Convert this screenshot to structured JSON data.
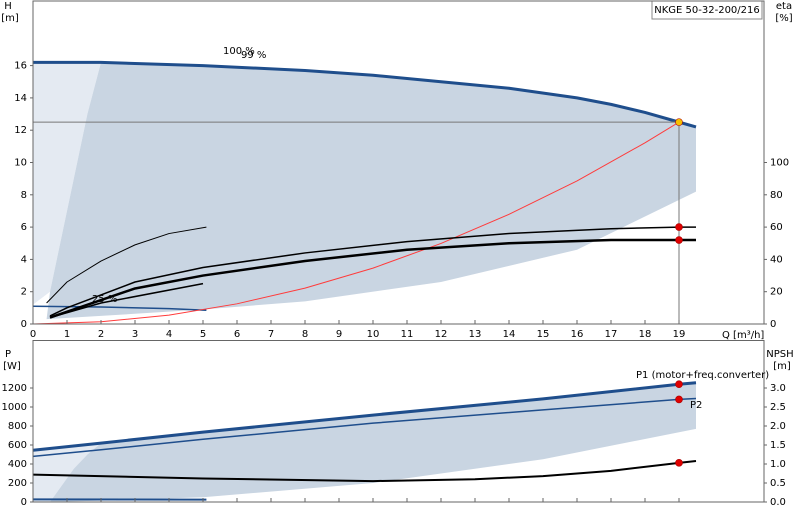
{
  "chart_data": [
    {
      "type": "line",
      "title": "NKGE 50-32-200/216",
      "y_label": "H",
      "y_unit": "[m]",
      "y2_label": "eta",
      "y2_unit": "[%]",
      "x_label": "Q [m³/h]",
      "xlim": [
        0,
        21.5
      ],
      "xticks": [
        0,
        1,
        2,
        3,
        4,
        5,
        6,
        7,
        8,
        9,
        10,
        11,
        12,
        13,
        14,
        15,
        16,
        17,
        18,
        19
      ],
      "ylim": [
        0,
        20
      ],
      "yticks": [
        0,
        2,
        4,
        6,
        8,
        10,
        12,
        14,
        16
      ],
      "y2lim": [
        0,
        200
      ],
      "y2ticks": [
        0,
        20,
        40,
        60,
        80,
        100
      ],
      "areas": [
        {
          "color": "#e4eaf2",
          "x": [
            0,
            2,
            1.6,
            1.2,
            0.8,
            0.5,
            0
          ],
          "values": [
            16.2,
            16.2,
            13,
            9,
            5,
            2,
            1.2
          ]
        },
        {
          "color": "#c9d5e2",
          "x": [
            2,
            5,
            10,
            14,
            17,
            19,
            19.5,
            19.5,
            16,
            12,
            8,
            5,
            2,
            0.4,
            0.5,
            0.8,
            1.2,
            1.6
          ],
          "values": [
            16.2,
            16.0,
            15.4,
            14.6,
            13.6,
            12.5,
            12.2,
            8.2,
            4.6,
            2.6,
            1.4,
            0.9,
            0.5,
            0.3,
            2,
            5,
            9,
            13
          ]
        }
      ],
      "series": [
        {
          "color": "#1f4e8c",
          "width": 3,
          "x": [
            0,
            2,
            5,
            8,
            10,
            12,
            14,
            16,
            17,
            18,
            19,
            19.5
          ],
          "values": [
            16.2,
            16.2,
            16.0,
            15.7,
            15.4,
            15.0,
            14.6,
            14.0,
            13.6,
            13.1,
            12.5,
            12.2
          ]
        },
        {
          "color": "#1f4e8c",
          "width": 1.5,
          "x": [
            0,
            2,
            4,
            5.1
          ],
          "values": [
            1.1,
            1.05,
            0.95,
            0.85
          ]
        },
        {
          "color": "#ff3b3b",
          "width": 1,
          "x": [
            0,
            2,
            4,
            6,
            8,
            10,
            12,
            14,
            16,
            18,
            19
          ],
          "values": [
            0,
            0.14,
            0.55,
            1.25,
            2.22,
            3.46,
            4.99,
            6.79,
            8.86,
            11.22,
            12.5
          ]
        },
        {
          "color": "#000000",
          "width": 1,
          "axis": "y2",
          "x": [
            0.4,
            1,
            2,
            3,
            4,
            5.1
          ],
          "values": [
            13,
            26,
            39,
            49,
            56,
            60
          ]
        },
        {
          "color": "#000000",
          "width": 1.5,
          "axis": "y2",
          "x": [
            0.5,
            2,
            5
          ],
          "values": [
            4,
            13,
            25
          ]
        },
        {
          "color": "#000000",
          "width": 1.5,
          "axis": "y2",
          "x": [
            0.5,
            1,
            3,
            5,
            8,
            11,
            14,
            17,
            19,
            19.5
          ],
          "values": [
            5,
            10,
            26,
            35,
            44,
            51,
            56,
            59,
            60,
            60
          ]
        },
        {
          "color": "#000000",
          "width": 2.5,
          "axis": "y2",
          "x": [
            0.5,
            3,
            5,
            8,
            11,
            14,
            17,
            19,
            19.5
          ],
          "values": [
            4,
            22,
            30,
            39,
            46,
            50,
            52,
            52,
            52
          ]
        }
      ],
      "points": [
        {
          "x": 19,
          "value": 12.5,
          "color": "#f5c000",
          "crosshair": true
        },
        {
          "x": 19,
          "value": 60,
          "axis": "y2",
          "color": "#e00000"
        },
        {
          "x": 19,
          "value": 52,
          "axis": "y2",
          "color": "#e00000"
        }
      ],
      "annotations": [
        "100 %",
        "99 %",
        "25 %"
      ]
    },
    {
      "type": "line",
      "y_label": "P",
      "y_unit": "[W]",
      "y2_label": "NPSH",
      "y2_unit": "[m]",
      "xlim": [
        0,
        21.5
      ],
      "ylim": [
        0,
        1700
      ],
      "yticks": [
        0,
        200,
        400,
        600,
        800,
        1000,
        1200
      ],
      "y2lim": [
        0,
        4.25
      ],
      "y2ticks": [
        {
          "value": 0,
          "label": "0.0"
        },
        0.5,
        {
          "value": 1,
          "label": "1.0"
        },
        1.5,
        {
          "value": 2,
          "label": "2.0"
        },
        2.5,
        {
          "value": 3,
          "label": "3.0"
        }
      ],
      "areas": [
        {
          "color": "#e4eaf2",
          "x": [
            0,
            2,
            1.6,
            1.2,
            0.8,
            0.5,
            0
          ],
          "values": [
            545,
            620,
            500,
            350,
            150,
            0,
            0
          ]
        },
        {
          "color": "#c9d5e2",
          "x": [
            2,
            5,
            10,
            15,
            19,
            19.5,
            19.5,
            15,
            10,
            5,
            2,
            0.5,
            0.8,
            1.2,
            1.6
          ],
          "values": [
            620,
            735,
            915,
            1085,
            1240,
            1255,
            770,
            450,
            200,
            50,
            15,
            0,
            150,
            350,
            500
          ]
        }
      ],
      "series": [
        {
          "color": "#1f4e8c",
          "width": 3,
          "x": [
            0,
            2,
            5,
            10,
            15,
            19,
            19.5
          ],
          "values": [
            545,
            620,
            735,
            915,
            1085,
            1240,
            1255
          ]
        },
        {
          "color": "#1f4e8c",
          "width": 1.5,
          "x": [
            0,
            2,
            5,
            10,
            15,
            19,
            19.5
          ],
          "values": [
            480,
            550,
            660,
            830,
            970,
            1080,
            1090
          ]
        },
        {
          "color": "#1f4e8c",
          "width": 2,
          "x": [
            0,
            5.1
          ],
          "values": [
            28,
            25
          ]
        },
        {
          "color": "#000000",
          "width": 2,
          "axis": "y2",
          "x": [
            0,
            5,
            10,
            13,
            15,
            17,
            19,
            19.5
          ],
          "values": [
            0.72,
            0.62,
            0.55,
            0.6,
            0.68,
            0.82,
            1.03,
            1.08
          ]
        }
      ],
      "points": [
        {
          "x": 19,
          "value": 1240,
          "color": "#e00000"
        },
        {
          "x": 19,
          "value": 1080,
          "color": "#e00000"
        },
        {
          "x": 19,
          "value": 1.03,
          "axis": "y2",
          "color": "#e00000"
        }
      ],
      "annotations": [
        "P1 (motor+freq.converter)",
        "P2"
      ]
    }
  ]
}
